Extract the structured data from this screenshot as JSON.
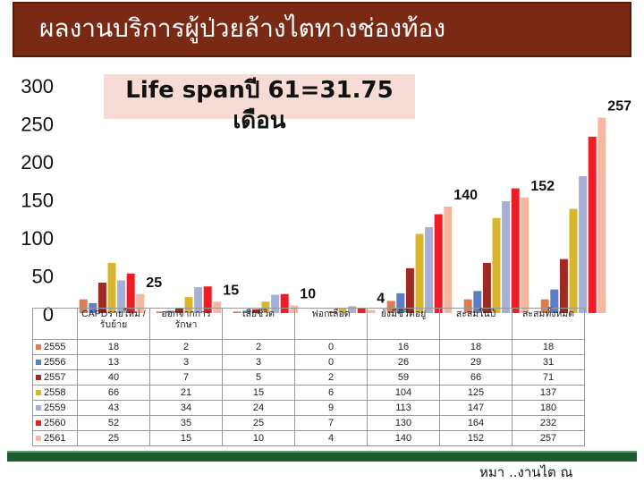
{
  "header": {
    "title": "ผลงานบริการผู้ป่วยล้างไตทางช่องท้อง"
  },
  "annotation": {
    "line1": "Life spanปี 61=31.75",
    "line2": "เดือน"
  },
  "footer": {
    "text": "หมา ..งานไต ณ"
  },
  "chart_data": {
    "type": "bar",
    "yticks": [
      "0",
      "50",
      "100",
      "150",
      "200",
      "250",
      "300"
    ],
    "ylim": [
      0,
      300
    ],
    "categories": [
      "CAPDรายใหม่ / รับย้าย",
      "ออกจากการรักษา",
      "เสียชีวิต",
      "ฟอกเลือด",
      "ยังมีชีวิตอยู่",
      "สะสมในปี",
      "สะสมทั้งหมด"
    ],
    "series": [
      {
        "name": "2555",
        "color": "#e07b4f",
        "values": [
          18,
          2,
          2,
          0,
          16,
          18,
          18
        ]
      },
      {
        "name": "2556",
        "color": "#5b7fc7",
        "values": [
          13,
          3,
          3,
          0,
          26,
          29,
          31
        ]
      },
      {
        "name": "2557",
        "color": "#9e2a22",
        "values": [
          40,
          7,
          5,
          2,
          59,
          66,
          71
        ]
      },
      {
        "name": "2558",
        "color": "#d9b52e",
        "values": [
          66,
          21,
          15,
          6,
          104,
          125,
          137
        ]
      },
      {
        "name": "2559",
        "color": "#a6afd6",
        "values": [
          43,
          34,
          24,
          9,
          113,
          147,
          180
        ]
      },
      {
        "name": "2560",
        "color": "#ee1c24",
        "values": [
          52,
          35,
          25,
          7,
          130,
          164,
          232
        ]
      },
      {
        "name": "2561",
        "color": "#f4b8a0",
        "values": [
          25,
          15,
          10,
          4,
          140,
          152,
          257
        ]
      }
    ],
    "data_labels": [
      {
        "category_index": 0,
        "text": "25"
      },
      {
        "category_index": 1,
        "text": "15"
      },
      {
        "category_index": 2,
        "text": "10"
      },
      {
        "category_index": 3,
        "text": "4"
      },
      {
        "category_index": 4,
        "text": "140"
      },
      {
        "category_index": 5,
        "text": "152"
      },
      {
        "category_index": 6,
        "text": "257"
      }
    ]
  }
}
